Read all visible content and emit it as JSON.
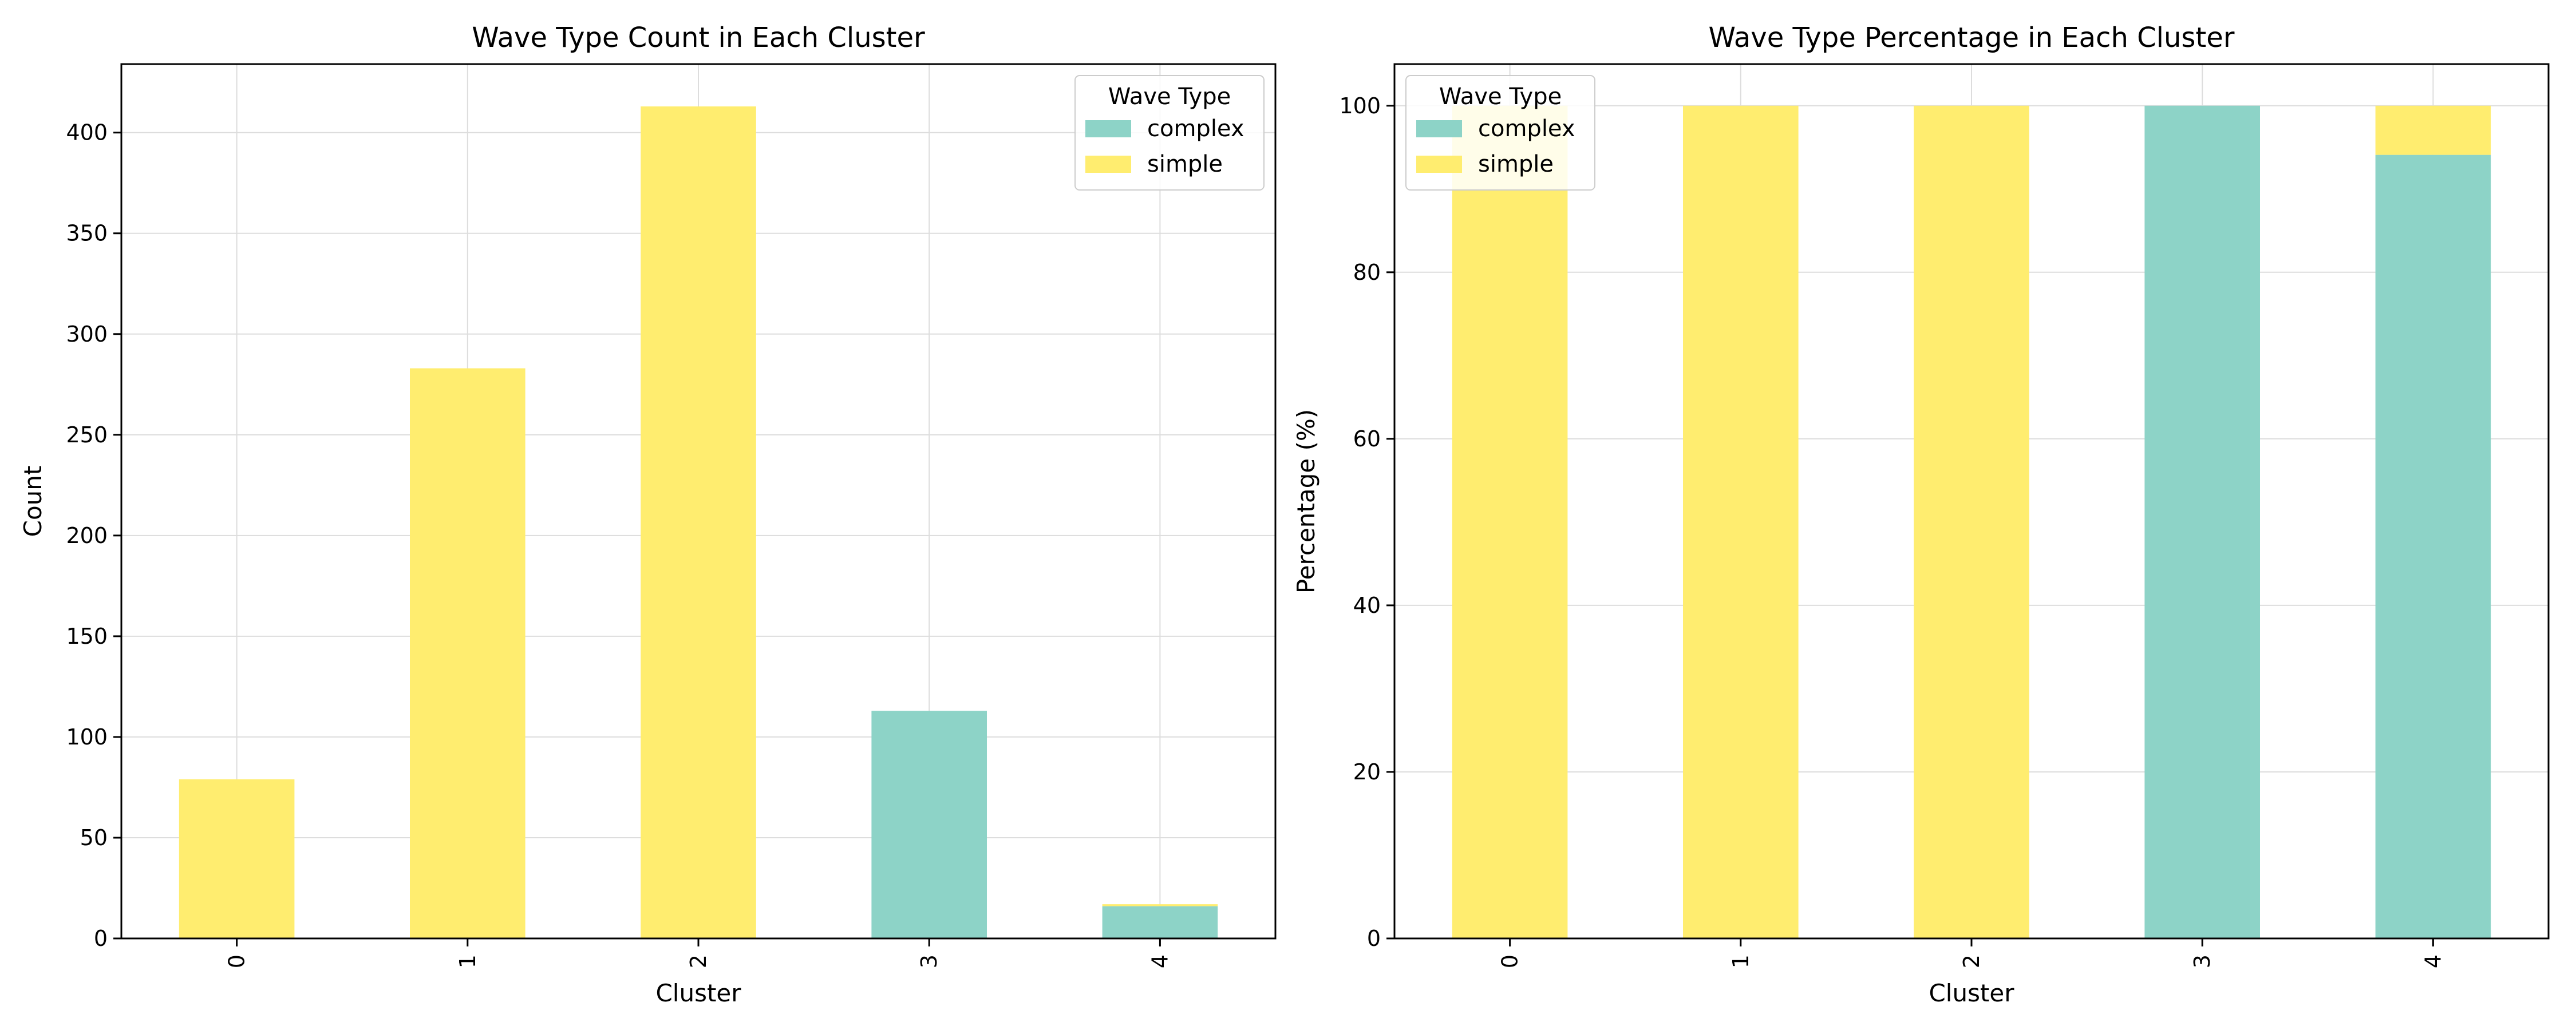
{
  "chart_data": [
    {
      "type": "bar",
      "stacked": true,
      "title": "Wave Type Count in Each Cluster",
      "xlabel": "Cluster",
      "ylabel": "Count",
      "categories": [
        "0",
        "1",
        "2",
        "3",
        "4"
      ],
      "series": [
        {
          "name": "complex",
          "values": [
            0,
            0,
            0,
            113,
            16
          ],
          "color": "#8dd3c7"
        },
        {
          "name": "simple",
          "values": [
            79,
            283,
            413,
            0,
            1
          ],
          "color": "#ffed6f"
        }
      ],
      "ylim": [
        0,
        434
      ],
      "yticks": [
        0,
        50,
        100,
        150,
        200,
        250,
        300,
        350,
        400
      ],
      "grid": true,
      "legend": {
        "title": "Wave Type",
        "position": "top-right"
      }
    },
    {
      "type": "bar",
      "stacked": true,
      "title": "Wave Type Percentage in Each Cluster",
      "xlabel": "Cluster",
      "ylabel": "Percentage (%)",
      "categories": [
        "0",
        "1",
        "2",
        "3",
        "4"
      ],
      "series": [
        {
          "name": "complex",
          "values": [
            0,
            0,
            0,
            100,
            94.1
          ],
          "color": "#8dd3c7"
        },
        {
          "name": "simple",
          "values": [
            100,
            100,
            100,
            0,
            5.9
          ],
          "color": "#ffed6f"
        }
      ],
      "ylim": [
        0,
        105
      ],
      "yticks": [
        0,
        20,
        40,
        60,
        80,
        100
      ],
      "grid": true,
      "legend": {
        "title": "Wave Type",
        "position": "top-left"
      }
    }
  ]
}
